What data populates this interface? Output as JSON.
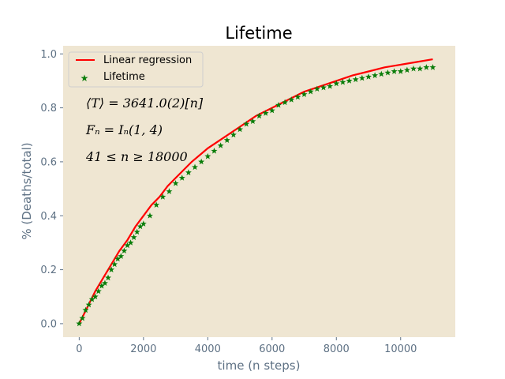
{
  "chart_data": {
    "type": "scatter",
    "title": "Lifetime",
    "xlabel": "time (n steps)",
    "ylabel": "% (Deaths/total)",
    "xlim": [
      -500,
      11700
    ],
    "ylim": [
      -0.05,
      1.03
    ],
    "xticks": [
      0,
      2000,
      4000,
      6000,
      8000,
      10000
    ],
    "yticks": [
      0.0,
      0.2,
      0.4,
      0.6,
      0.8,
      1.0
    ],
    "xtick_labels": [
      "0",
      "2000",
      "4000",
      "6000",
      "8000",
      "10000"
    ],
    "ytick_labels": [
      "0.0",
      "0.2",
      "0.4",
      "0.6",
      "0.8",
      "1.0"
    ],
    "grid": false,
    "background": "#efe6d2",
    "legend_position": "top-left",
    "legend": [
      {
        "label": "Linear regression",
        "marker": "line",
        "color": "#ff0000"
      },
      {
        "label": "Lifetime",
        "marker": "star",
        "color": "#0a7d0a"
      }
    ],
    "annotations": [
      "⟨T⟩ = 3641.0(2)[n]",
      "Fₙ = Iₙ(1, 4)",
      "41 ≤ n ≥ 18000"
    ],
    "series": [
      {
        "name": "Linear regression",
        "kind": "line",
        "color": "#ff0000",
        "x": [
          0,
          250,
          500,
          750,
          1000,
          1250,
          1500,
          1750,
          2000,
          2250,
          2500,
          2750,
          3000,
          3500,
          4000,
          4500,
          5000,
          5500,
          6000,
          6500,
          7000,
          7500,
          8000,
          8500,
          9000,
          9500,
          10000,
          10500,
          11000
        ],
        "y": [
          0.0,
          0.06,
          0.12,
          0.17,
          0.22,
          0.27,
          0.31,
          0.36,
          0.4,
          0.44,
          0.47,
          0.51,
          0.54,
          0.6,
          0.65,
          0.69,
          0.73,
          0.77,
          0.8,
          0.83,
          0.86,
          0.88,
          0.9,
          0.92,
          0.935,
          0.95,
          0.96,
          0.97,
          0.98
        ]
      },
      {
        "name": "Lifetime",
        "kind": "scatter",
        "color": "#0a7d0a",
        "x": [
          0,
          100,
          200,
          300,
          400,
          500,
          600,
          700,
          800,
          900,
          1000,
          1100,
          1200,
          1300,
          1400,
          1500,
          1600,
          1700,
          1800,
          1900,
          2000,
          2200,
          2400,
          2600,
          2800,
          3000,
          3200,
          3400,
          3600,
          3800,
          4000,
          4200,
          4400,
          4600,
          4800,
          5000,
          5200,
          5400,
          5600,
          5800,
          6000,
          6200,
          6400,
          6600,
          6800,
          7000,
          7200,
          7400,
          7600,
          7800,
          8000,
          8200,
          8400,
          8600,
          8800,
          9000,
          9200,
          9400,
          9600,
          9800,
          10000,
          10200,
          10400,
          10600,
          10800,
          11000
        ],
        "y": [
          0.0,
          0.02,
          0.05,
          0.07,
          0.09,
          0.1,
          0.12,
          0.14,
          0.15,
          0.17,
          0.2,
          0.22,
          0.24,
          0.25,
          0.27,
          0.29,
          0.3,
          0.32,
          0.34,
          0.36,
          0.37,
          0.4,
          0.44,
          0.47,
          0.49,
          0.52,
          0.54,
          0.56,
          0.58,
          0.6,
          0.62,
          0.64,
          0.66,
          0.68,
          0.7,
          0.72,
          0.74,
          0.75,
          0.77,
          0.78,
          0.79,
          0.81,
          0.82,
          0.83,
          0.84,
          0.85,
          0.86,
          0.87,
          0.875,
          0.88,
          0.89,
          0.895,
          0.9,
          0.905,
          0.91,
          0.915,
          0.92,
          0.925,
          0.93,
          0.935,
          0.935,
          0.94,
          0.945,
          0.945,
          0.95,
          0.95
        ]
      }
    ]
  }
}
